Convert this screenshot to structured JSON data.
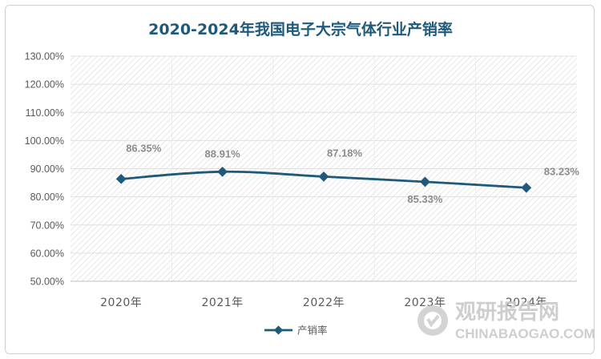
{
  "chart_data": {
    "type": "line",
    "title": "2020-2024年我国电子大宗气体行业产销率",
    "categories": [
      "2020年",
      "2021年",
      "2022年",
      "2023年",
      "2024年"
    ],
    "series": [
      {
        "name": "产销率",
        "values": [
          86.35,
          88.91,
          87.18,
          85.33,
          83.23
        ],
        "color": "#1f5a7a"
      }
    ],
    "data_labels": [
      "86.35%",
      "88.91%",
      "87.18%",
      "85.33%",
      "83.23%"
    ],
    "ylim": [
      50,
      130
    ],
    "y_ticks": [
      "50.00%",
      "60.00%",
      "70.00%",
      "80.00%",
      "90.00%",
      "100.00%",
      "110.00%",
      "120.00%",
      "130.00%"
    ],
    "legend": "bottom-center",
    "xlabel": "",
    "ylabel": ""
  },
  "watermark": {
    "text": "观研报告网",
    "url": "CHINABAOGAO.COM"
  }
}
